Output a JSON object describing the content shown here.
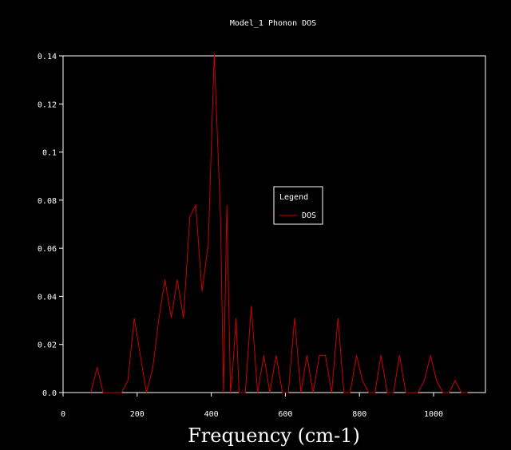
{
  "chart_data": {
    "type": "line",
    "title": "Model_1 Phonon DOS",
    "xlabel": "Frequency (cm-1)",
    "ylabel": "",
    "xlim": [
      0,
      1140
    ],
    "ylim": [
      0,
      0.14
    ],
    "x_ticks": [
      0,
      200,
      400,
      600,
      800,
      1000
    ],
    "x_tick_labels": [
      "0",
      "200",
      "400",
      "600",
      "800",
      "1000"
    ],
    "y_ticks": [
      0,
      0.02,
      0.04,
      0.06,
      0.08,
      0.1,
      0.12,
      0.14
    ],
    "y_tick_labels": [
      "0.0",
      "0.02",
      "0.04",
      "0.06",
      "0.08",
      "0.1",
      "0.12",
      "0.14"
    ],
    "grid": false,
    "legend": {
      "title": "Legend",
      "position": "center-right"
    },
    "series": [
      {
        "name": "DOS",
        "color": "#cc0000",
        "x": [
          75,
          92,
          108,
          125,
          142,
          158,
          175,
          192,
          208,
          225,
          242,
          258,
          275,
          292,
          308,
          325,
          342,
          358,
          375,
          392,
          408,
          425,
          433,
          442,
          452,
          458,
          467,
          475,
          492,
          508,
          525,
          542,
          558,
          575,
          592,
          608,
          625,
          642,
          658,
          675,
          692,
          708,
          725,
          742,
          758,
          775,
          792,
          808,
          825,
          842,
          858,
          875,
          892,
          908,
          925,
          942,
          958,
          975,
          992,
          1008,
          1025,
          1042,
          1058,
          1075,
          1092
        ],
        "y": [
          0,
          0.0105,
          0,
          0,
          0,
          0,
          0.005,
          0.031,
          0.016,
          0,
          0.01,
          0.03,
          0.047,
          0.031,
          0.047,
          0.031,
          0.073,
          0.078,
          0.042,
          0.062,
          0.141,
          0.073,
          0,
          0.078,
          0,
          0.01,
          0.031,
          0,
          0,
          0.036,
          0,
          0.0155,
          0,
          0.0155,
          0,
          0,
          0.031,
          0,
          0.0155,
          0,
          0.0155,
          0.0155,
          0,
          0.031,
          0,
          0,
          0.0155,
          0.005,
          0,
          0,
          0.0155,
          0,
          0,
          0.0155,
          0,
          0,
          0,
          0.005,
          0.0155,
          0.005,
          0,
          0,
          0.005,
          0,
          0
        ]
      }
    ]
  }
}
